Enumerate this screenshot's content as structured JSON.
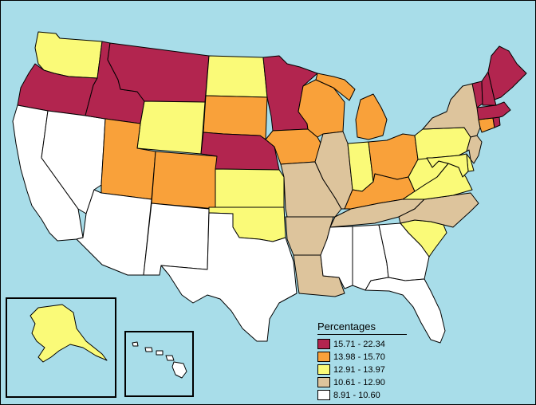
{
  "legend": {
    "title": "Percentages",
    "items": [
      {
        "label": "15.71 - 22.34",
        "color": "#b2254f"
      },
      {
        "label": "13.98 - 15.70",
        "color": "#f9a13a"
      },
      {
        "label": "12.91 - 13.97",
        "color": "#fafa78"
      },
      {
        "label": "10.61 - 12.90",
        "color": "#ddc49c"
      },
      {
        "label": "8.91 - 10.60",
        "color": "#ffffff"
      }
    ]
  },
  "states": [
    {
      "id": "WA",
      "class": 2
    },
    {
      "id": "OR",
      "class": 0
    },
    {
      "id": "CA",
      "class": 4
    },
    {
      "id": "ID",
      "class": 0
    },
    {
      "id": "NV",
      "class": 4
    },
    {
      "id": "MT",
      "class": 0
    },
    {
      "id": "WY",
      "class": 2
    },
    {
      "id": "UT",
      "class": 1
    },
    {
      "id": "AZ",
      "class": 4
    },
    {
      "id": "CO",
      "class": 1
    },
    {
      "id": "NM",
      "class": 4
    },
    {
      "id": "ND",
      "class": 2
    },
    {
      "id": "SD",
      "class": 1
    },
    {
      "id": "NE",
      "class": 0
    },
    {
      "id": "KS",
      "class": 2
    },
    {
      "id": "OK",
      "class": 2
    },
    {
      "id": "TX",
      "class": 4
    },
    {
      "id": "MN",
      "class": 0
    },
    {
      "id": "IA",
      "class": 1
    },
    {
      "id": "MO",
      "class": 3
    },
    {
      "id": "AR",
      "class": 3
    },
    {
      "id": "LA",
      "class": 3
    },
    {
      "id": "WI",
      "class": 1
    },
    {
      "id": "IL",
      "class": 3
    },
    {
      "id": "MI",
      "class": 1
    },
    {
      "id": "IN",
      "class": 2
    },
    {
      "id": "OH",
      "class": 1
    },
    {
      "id": "KY",
      "class": 1
    },
    {
      "id": "TN",
      "class": 3
    },
    {
      "id": "MS",
      "class": 4
    },
    {
      "id": "AL",
      "class": 4
    },
    {
      "id": "GA",
      "class": 4
    },
    {
      "id": "FL",
      "class": 4
    },
    {
      "id": "SC",
      "class": 2
    },
    {
      "id": "NC",
      "class": 3
    },
    {
      "id": "VA",
      "class": 2
    },
    {
      "id": "WV",
      "class": 2
    },
    {
      "id": "PA",
      "class": 2
    },
    {
      "id": "NY",
      "class": 3
    },
    {
      "id": "NJ",
      "class": 3
    },
    {
      "id": "DE",
      "class": 2
    },
    {
      "id": "MD",
      "class": 2
    },
    {
      "id": "CT",
      "class": 1
    },
    {
      "id": "RI",
      "class": 0
    },
    {
      "id": "MA",
      "class": 0
    },
    {
      "id": "VT",
      "class": 0
    },
    {
      "id": "NH",
      "class": 0
    },
    {
      "id": "ME",
      "class": 0
    },
    {
      "id": "AK",
      "class": 2
    },
    {
      "id": "HI",
      "class": 4
    }
  ]
}
